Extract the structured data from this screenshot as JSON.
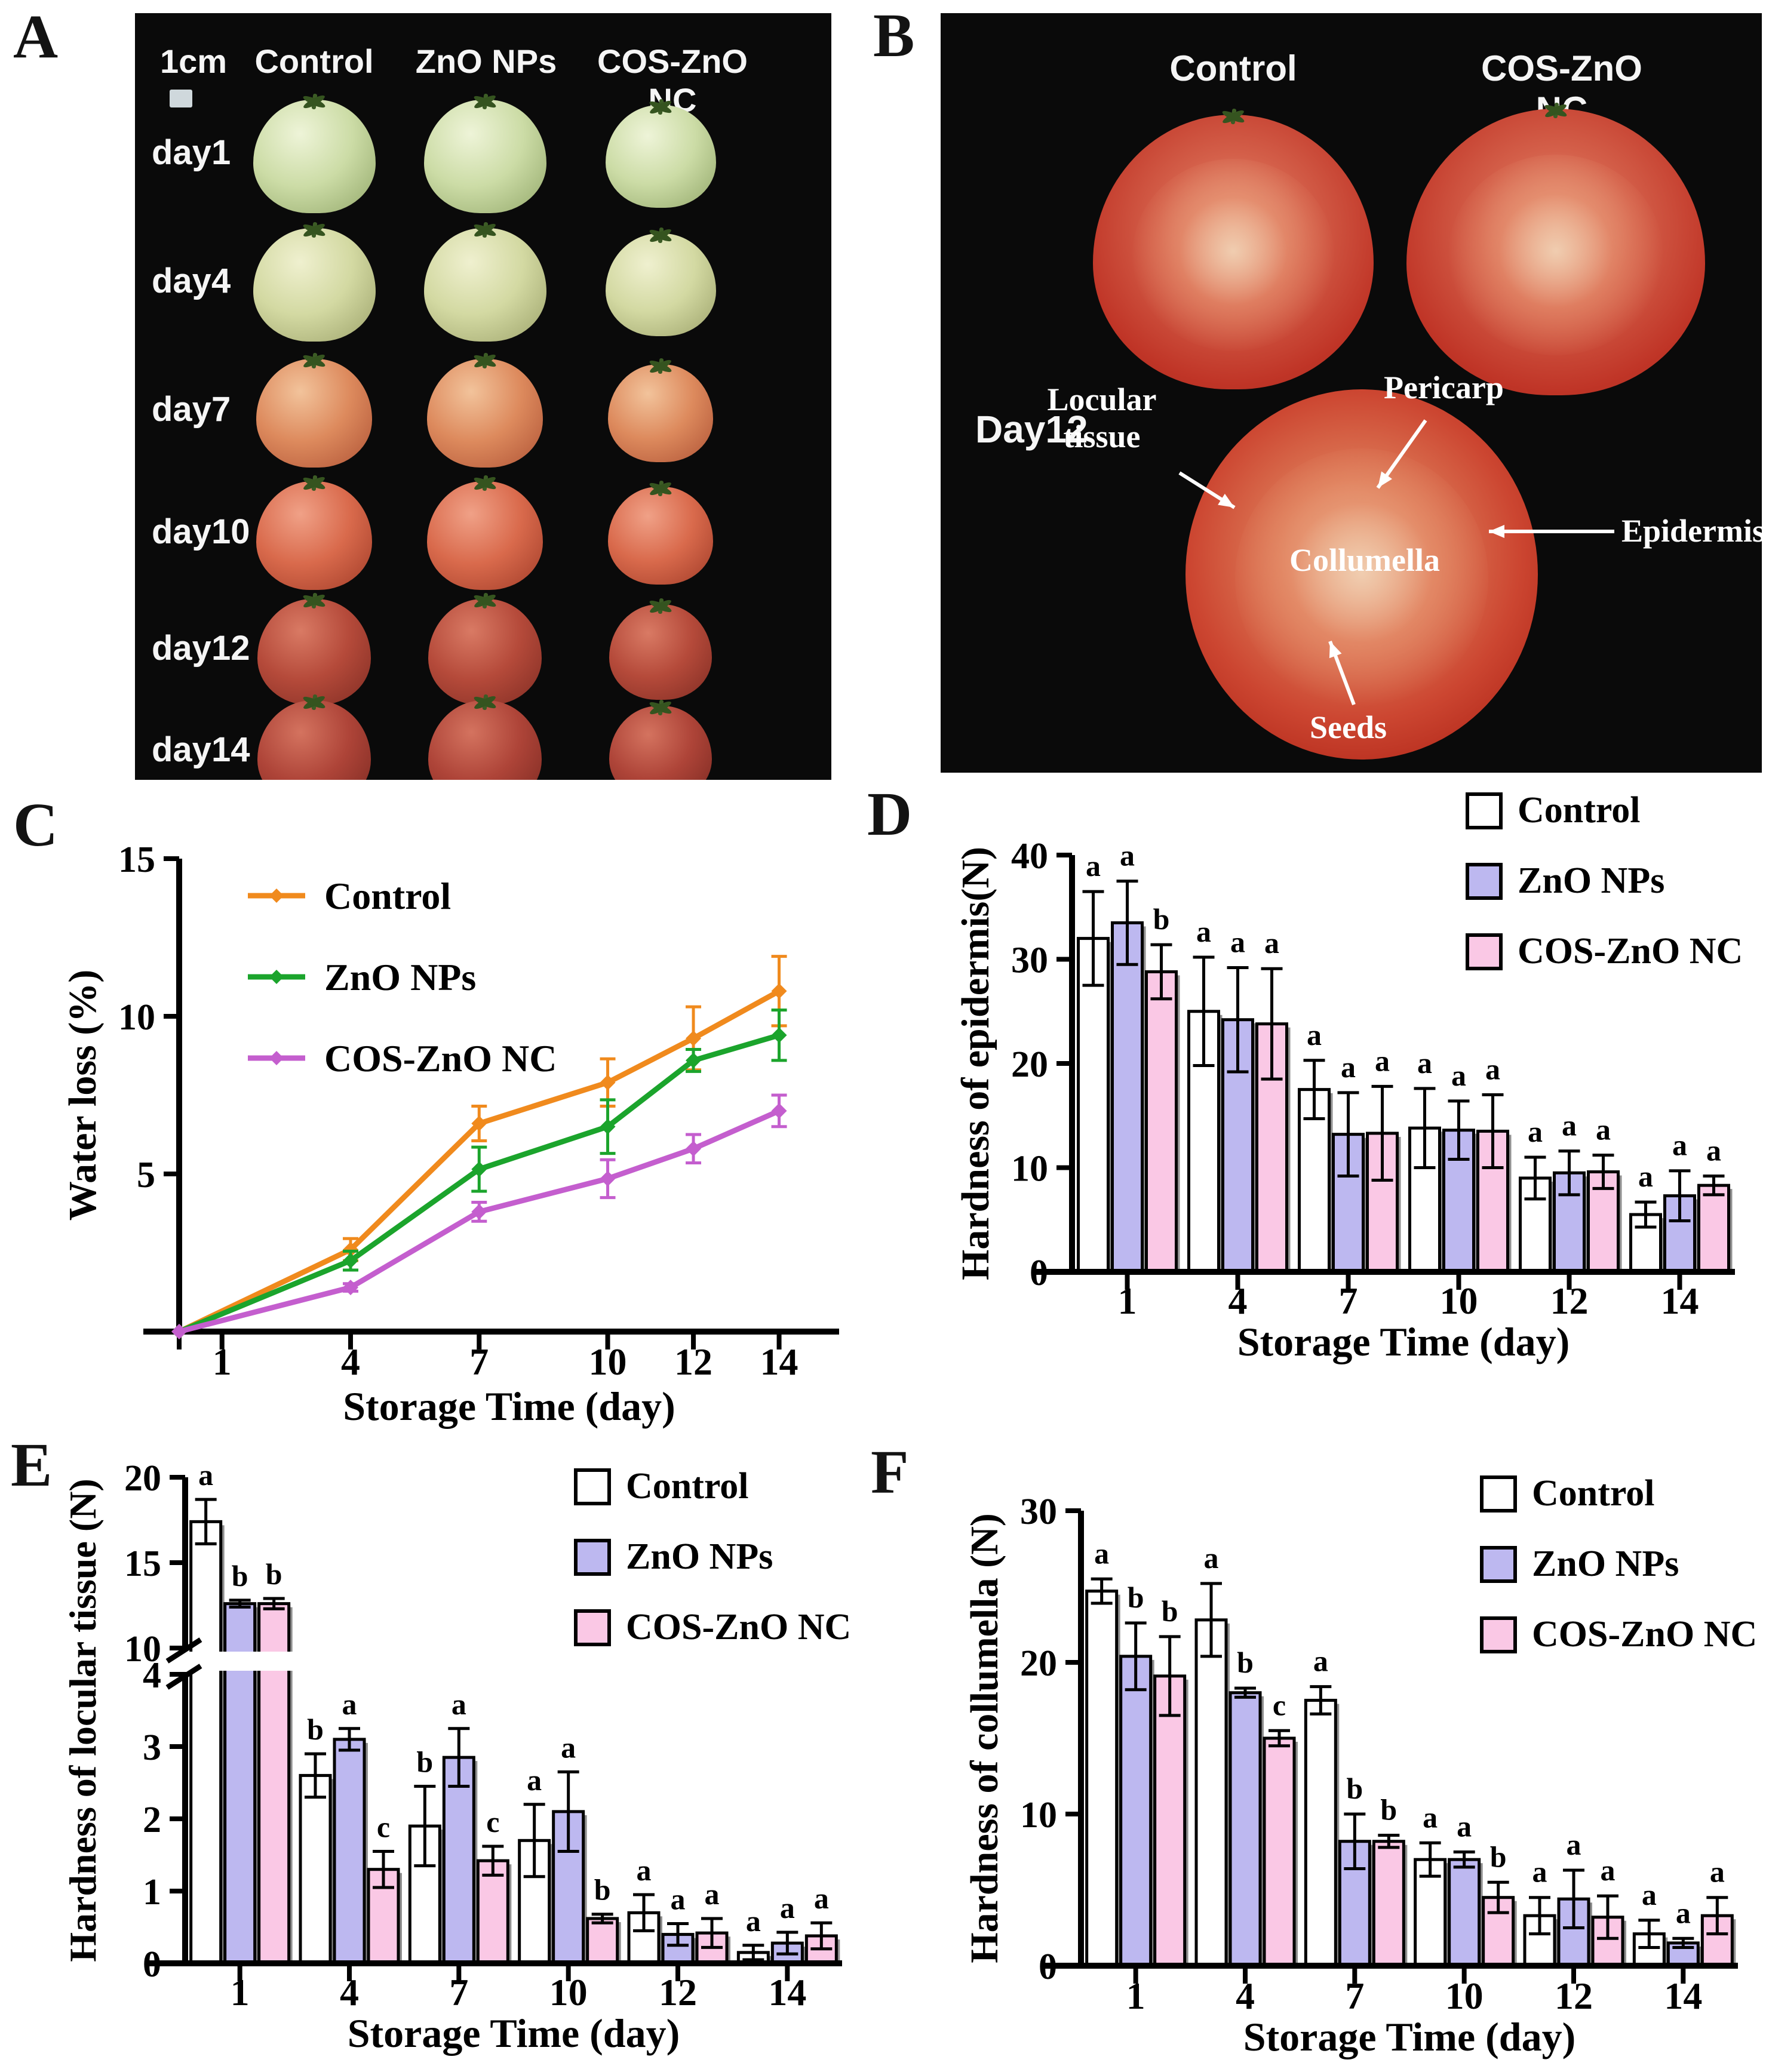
{
  "figure": {
    "panel_labels": {
      "A": "A",
      "B": "B",
      "C": "C",
      "D": "D",
      "E": "E",
      "F": "F"
    }
  },
  "panel_a": {
    "scale_label": "1cm",
    "columns": [
      "Control",
      "ZnO NPs",
      "COS-ZnO NC"
    ],
    "rows": [
      {
        "label": "day1",
        "hi": "#eef4d8",
        "body": "#ccdca6",
        "shade": "#9fb377"
      },
      {
        "label": "day4",
        "hi": "#eff0cf",
        "body": "#d3d9a2",
        "shade": "#a8ae76"
      },
      {
        "label": "day7",
        "hi": "#f2c39b",
        "body": "#dd8a5d",
        "shade": "#b95f3e"
      },
      {
        "label": "day10",
        "hi": "#f0a187",
        "body": "#d96a4c",
        "shade": "#ad4630"
      },
      {
        "label": "day12",
        "hi": "#d97a64",
        "body": "#b54a3a",
        "shade": "#8c3328"
      },
      {
        "label": "day14",
        "hi": "#d4735f",
        "body": "#ae4438",
        "shade": "#862f26"
      }
    ]
  },
  "panel_b": {
    "columns": [
      "Control",
      "COS-ZnO NC"
    ],
    "row_label": "Day12",
    "annotations": {
      "locular_tissue": "Locular tissue",
      "pericarp": "Pericarp",
      "collumella": "Collumella",
      "epidermis": "Epidermis",
      "seeds": "Seeds"
    }
  },
  "chart_data": [
    {
      "id": "C",
      "type": "line",
      "title": "",
      "xlabel": "Storage Time (day)",
      "ylabel": "Water loss (%)",
      "xlim": [
        0,
        15.4
      ],
      "ylim": [
        0,
        15
      ],
      "yticks": [
        5,
        10,
        15
      ],
      "xticks": [
        1,
        4,
        7,
        10,
        12,
        14
      ],
      "x": [
        0,
        4,
        7,
        10,
        12,
        14
      ],
      "legend_position": "top-left-inside",
      "series": [
        {
          "name": "Control",
          "color": "#F08A1D",
          "values": [
            0,
            2.6,
            6.6,
            7.9,
            9.3,
            10.8
          ],
          "errors": [
            0,
            0.35,
            0.55,
            0.75,
            1.0,
            1.1
          ]
        },
        {
          "name": "ZnO NPs",
          "color": "#1BA42C",
          "values": [
            0,
            2.25,
            5.15,
            6.5,
            8.6,
            9.4
          ],
          "errors": [
            0,
            0.3,
            0.7,
            0.85,
            0.35,
            0.8
          ]
        },
        {
          "name": "COS-ZnO NC",
          "color": "#C45ECE",
          "values": [
            0,
            1.4,
            3.8,
            4.85,
            5.8,
            7.0
          ],
          "errors": [
            0,
            0.12,
            0.3,
            0.6,
            0.45,
            0.5
          ]
        }
      ]
    },
    {
      "id": "D",
      "type": "bar",
      "title": "",
      "xlabel": "Storage Time (day)",
      "ylabel": "Hardness of epidermis(N)",
      "ylim": [
        0,
        40
      ],
      "yticks": [
        0,
        10,
        20,
        30,
        40
      ],
      "categories": [
        "1",
        "4",
        "7",
        "10",
        "12",
        "14"
      ],
      "legend_position": "top-right",
      "series": [
        {
          "name": "Control",
          "fill": "#FFFFFF",
          "values": [
            32,
            25,
            17.5,
            13.8,
            9.0,
            5.5
          ],
          "errors": [
            4.5,
            5.2,
            2.8,
            3.8,
            2.0,
            1.2
          ],
          "letters": [
            "a",
            "a",
            "a",
            "a",
            "a",
            "a"
          ]
        },
        {
          "name": "ZnO NPs",
          "fill": "#BDB8F0",
          "values": [
            33.5,
            24.2,
            13.2,
            13.6,
            9.5,
            7.3
          ],
          "errors": [
            4.0,
            5.0,
            4.0,
            2.8,
            2.1,
            2.4
          ],
          "letters": [
            "a",
            "a",
            "a",
            "a",
            "a",
            "a"
          ]
        },
        {
          "name": "COS-ZnO NC",
          "fill": "#FAC8E5",
          "values": [
            28.8,
            23.8,
            13.3,
            13.5,
            9.6,
            8.3
          ],
          "errors": [
            2.6,
            5.3,
            4.5,
            3.5,
            1.6,
            0.9
          ],
          "letters": [
            "b",
            "a",
            "a",
            "a",
            "a",
            "a"
          ]
        }
      ]
    },
    {
      "id": "E",
      "type": "bar-broken",
      "title": "",
      "xlabel": "Storage Time (day)",
      "ylabel": "Hardness of locular tissue (N)",
      "lower_ylim": [
        0,
        4
      ],
      "lower_yticks": [
        0,
        1,
        2,
        3,
        4
      ],
      "upper_ylim": [
        10,
        20
      ],
      "upper_yticks": [
        10,
        15,
        20
      ],
      "categories": [
        "1",
        "4",
        "7",
        "10",
        "12",
        "14"
      ],
      "legend_position": "top-right",
      "series": [
        {
          "name": "Control",
          "fill": "#FFFFFF",
          "values": [
            17.4,
            2.6,
            1.9,
            1.7,
            0.7,
            0.15
          ],
          "errors": [
            1.3,
            0.3,
            0.55,
            0.5,
            0.25,
            0.1
          ],
          "letters": [
            "a",
            "b",
            "b",
            "a",
            "a",
            "a"
          ]
        },
        {
          "name": "ZnO NPs",
          "fill": "#BDB8F0",
          "values": [
            12.6,
            3.1,
            2.85,
            2.1,
            0.4,
            0.28
          ],
          "errors": [
            0.2,
            0.15,
            0.4,
            0.55,
            0.15,
            0.15
          ],
          "letters": [
            "b",
            "a",
            "a",
            "a",
            "a",
            "a"
          ]
        },
        {
          "name": "COS-ZnO NC",
          "fill": "#FAC8E5",
          "values": [
            12.6,
            1.3,
            1.42,
            0.62,
            0.42,
            0.38
          ],
          "errors": [
            0.3,
            0.25,
            0.2,
            0.06,
            0.2,
            0.18
          ],
          "letters": [
            "b",
            "c",
            "c",
            "b",
            "a",
            "a"
          ]
        }
      ]
    },
    {
      "id": "F",
      "type": "bar",
      "title": "",
      "xlabel": "Storage Time (day)",
      "ylabel": "Hardness of collumella (N)",
      "ylim": [
        0,
        30
      ],
      "yticks": [
        0,
        10,
        20,
        30
      ],
      "categories": [
        "1",
        "4",
        "7",
        "10",
        "12",
        "14"
      ],
      "legend_position": "top-right",
      "series": [
        {
          "name": "Control",
          "fill": "#FFFFFF",
          "values": [
            24.7,
            22.8,
            17.5,
            7.0,
            3.3,
            2.1
          ],
          "errors": [
            0.8,
            2.4,
            0.9,
            1.1,
            1.2,
            0.9
          ],
          "letters": [
            "a",
            "a",
            "a",
            "a",
            "a",
            "a"
          ]
        },
        {
          "name": "ZnO NPs",
          "fill": "#BDB8F0",
          "values": [
            20.4,
            18.0,
            8.2,
            7.0,
            4.4,
            1.5
          ],
          "errors": [
            2.2,
            0.3,
            1.8,
            0.5,
            1.9,
            0.3
          ],
          "letters": [
            "b",
            "b",
            "b",
            "a",
            "a",
            "a"
          ]
        },
        {
          "name": "COS-ZnO NC",
          "fill": "#FAC8E5",
          "values": [
            19.1,
            15.0,
            8.2,
            4.5,
            3.2,
            3.3
          ],
          "errors": [
            2.6,
            0.5,
            0.4,
            1.0,
            1.4,
            1.2
          ],
          "letters": [
            "b",
            "c",
            "b",
            "b",
            "a",
            "a"
          ]
        }
      ]
    }
  ],
  "style_colors": {
    "bar_control": "#FFFFFF",
    "bar_zno": "#BDB8F0",
    "bar_cos": "#FAC8E5",
    "line_control": "#F08A1D",
    "line_zno": "#1BA42C",
    "line_cos": "#C45ECE"
  }
}
